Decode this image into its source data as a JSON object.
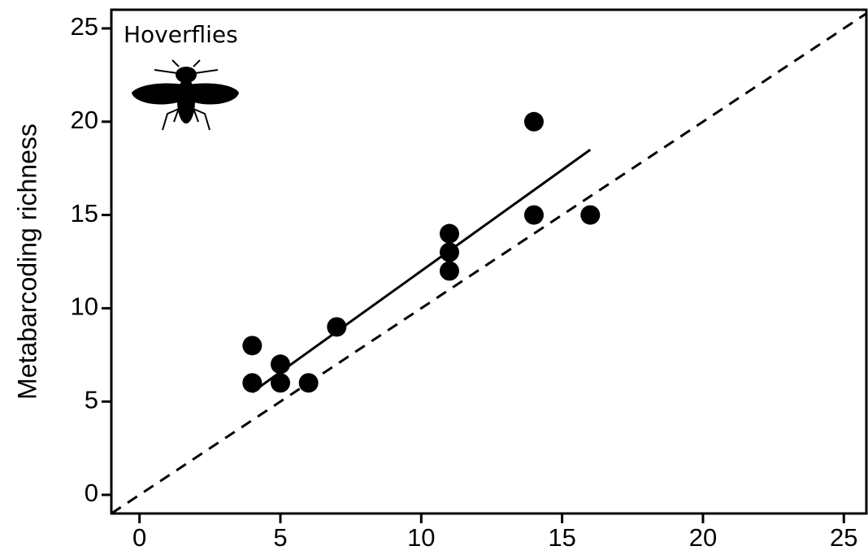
{
  "chart_data": {
    "type": "scatter",
    "y_label": "Metabarcoding richness",
    "annotation": "Hoverflies",
    "x": [
      4,
      4,
      5,
      5,
      6,
      7,
      11,
      11,
      11,
      14,
      14,
      16
    ],
    "y": [
      8,
      6,
      7,
      6,
      6,
      9,
      14,
      13,
      12,
      20,
      15,
      15
    ],
    "color": "#000000",
    "xlim": [
      -1,
      25.8
    ],
    "ylim": [
      -1,
      26
    ],
    "xticks": [
      0,
      5,
      10,
      15,
      20,
      25
    ],
    "yticks": [
      0,
      5,
      10,
      15,
      20,
      25
    ],
    "fit_line": {
      "x": [
        4,
        16
      ],
      "y": [
        5.5,
        18.5
      ]
    },
    "reference_line": {
      "slope": 1,
      "intercept": 0,
      "dashed": true
    },
    "grid": false
  }
}
